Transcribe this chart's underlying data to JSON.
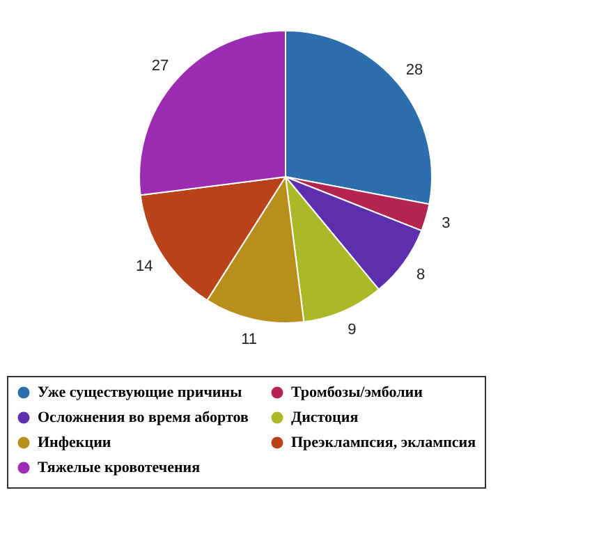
{
  "chart_data": {
    "type": "pie",
    "categories": [
      "Уже существующие причины",
      "Тромбозы/эмболии",
      "Осложнения во время абортов",
      "Дистоция",
      "Инфекции",
      "Преэклампсия, эклампсия",
      "Тяжелые кровотечения"
    ],
    "values": [
      28,
      3,
      8,
      9,
      11,
      14,
      27
    ],
    "colors": [
      "#2c6eab",
      "#b3254f",
      "#5b2fae",
      "#a9b927",
      "#b88f1c",
      "#b8431b",
      "#9c2db3"
    ],
    "data_labels": true,
    "legend": "bottom"
  }
}
